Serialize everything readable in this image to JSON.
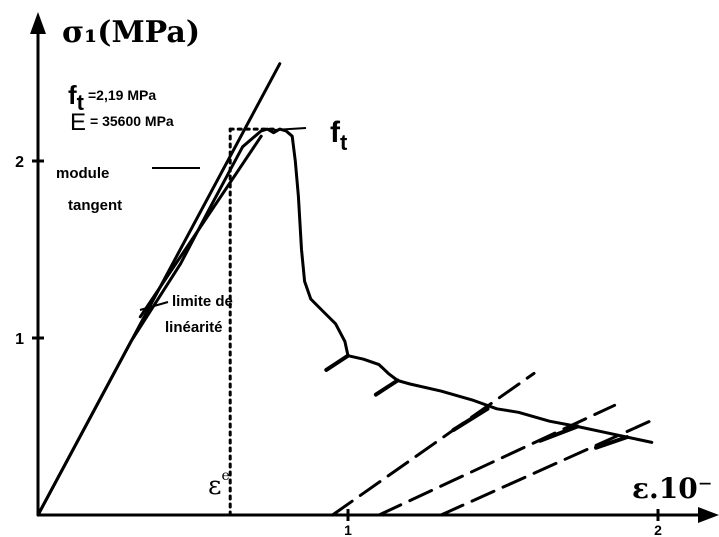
{
  "chart_data": {
    "type": "line",
    "ylabel": "σ₁(MPa)",
    "xlabel": "ε.10⁻",
    "xlim": [
      0,
      2.1
    ],
    "ylim": [
      0,
      2.55
    ],
    "x_ticks": [
      {
        "value": 1,
        "label": "1"
      },
      {
        "value": 2,
        "label": "2"
      }
    ],
    "y_ticks": [
      {
        "value": 1,
        "label": "1"
      },
      {
        "value": 2,
        "label": "2"
      }
    ],
    "grid": false,
    "legend": "none",
    "params": {
      "ft_symbol": "f",
      "ft_sub": "t",
      "ft_value": "=2,19 MPa",
      "e_symbol": "E",
      "e_value": "= 35600 MPa"
    },
    "series": [
      {
        "role": "initial-modulus",
        "style": "solid",
        "points": [
          [
            0,
            0
          ],
          [
            0.78,
            2.55
          ]
        ]
      },
      {
        "role": "stress-strain",
        "style": "solid",
        "points": [
          [
            0,
            0
          ],
          [
            0.3,
            0.98
          ],
          [
            0.46,
            1.42
          ],
          [
            0.55,
            1.72
          ],
          [
            0.62,
            1.95
          ],
          [
            0.66,
            2.08
          ],
          [
            0.7,
            2.14
          ],
          [
            0.72,
            2.17
          ],
          [
            0.74,
            2.18
          ],
          [
            0.76,
            2.16
          ],
          [
            0.78,
            2.18
          ],
          [
            0.8,
            2.17
          ],
          [
            0.82,
            2.14
          ],
          [
            0.83,
            2.0
          ],
          [
            0.84,
            1.8
          ],
          [
            0.85,
            1.5
          ],
          [
            0.86,
            1.32
          ],
          [
            0.88,
            1.22
          ],
          [
            0.92,
            1.15
          ],
          [
            0.96,
            1.08
          ],
          [
            0.99,
            0.98
          ],
          [
            1.0,
            0.9
          ],
          [
            1.05,
            0.88
          ],
          [
            1.1,
            0.85
          ],
          [
            1.13,
            0.8
          ],
          [
            1.16,
            0.76
          ],
          [
            1.2,
            0.74
          ],
          [
            1.3,
            0.7
          ],
          [
            1.4,
            0.65
          ],
          [
            1.48,
            0.6
          ],
          [
            1.55,
            0.58
          ],
          [
            1.65,
            0.53
          ],
          [
            1.74,
            0.5
          ],
          [
            1.82,
            0.47
          ],
          [
            1.9,
            0.44
          ],
          [
            1.98,
            0.41
          ]
        ]
      },
      {
        "role": "tangent-modulus",
        "style": "solid",
        "points": [
          [
            0.33,
            1.12
          ],
          [
            0.72,
            2.14
          ]
        ]
      },
      {
        "role": "peak-strain-marker",
        "style": "dotted",
        "points": [
          [
            0.62,
            0
          ],
          [
            0.62,
            2.18
          ]
        ]
      },
      {
        "role": "peak-stress-marker",
        "style": "dotted",
        "points": [
          [
            0.62,
            2.18
          ],
          [
            0.76,
            2.18
          ]
        ]
      },
      {
        "role": "unloading",
        "style": "dashed",
        "points": [
          [
            0.95,
            0
          ],
          [
            1.6,
            0.8
          ]
        ]
      },
      {
        "role": "unloading",
        "style": "dashed",
        "points": [
          [
            1.1,
            0
          ],
          [
            1.86,
            0.62
          ]
        ]
      },
      {
        "role": "unloading",
        "style": "dashed",
        "points": [
          [
            1.3,
            0
          ],
          [
            2.0,
            0.55
          ]
        ]
      },
      {
        "role": "unloading-tick",
        "style": "solid",
        "points": [
          [
            0.93,
            0.82
          ],
          [
            1.0,
            0.9
          ]
        ]
      },
      {
        "role": "unloading-tick",
        "style": "solid",
        "points": [
          [
            1.09,
            0.68
          ],
          [
            1.16,
            0.76
          ]
        ]
      },
      {
        "role": "unloading-tick",
        "style": "solid",
        "points": [
          [
            1.34,
            0.48
          ],
          [
            1.45,
            0.6
          ]
        ]
      },
      {
        "role": "unloading-tick",
        "style": "solid",
        "points": [
          [
            1.62,
            0.42
          ],
          [
            1.74,
            0.5
          ]
        ]
      },
      {
        "role": "unloading-tick",
        "style": "solid",
        "points": [
          [
            1.8,
            0.38
          ],
          [
            1.9,
            0.44
          ]
        ]
      }
    ],
    "annotations": [
      {
        "text": "module",
        "anchor": [
          0.44,
          1.95
        ]
      },
      {
        "text": "tangent",
        "anchor": [
          0.44,
          1.95
        ]
      },
      {
        "text": "limite de",
        "anchor": [
          0.31,
          0.98
        ]
      },
      {
        "text": "linéarité",
        "anchor": [
          0.31,
          0.98
        ]
      },
      {
        "text_parts": [
          "f",
          "t"
        ],
        "anchor": [
          0.76,
          2.18
        ]
      },
      {
        "text": "ε",
        "sup": "e",
        "anchor": [
          0.62,
          0
        ]
      }
    ]
  }
}
